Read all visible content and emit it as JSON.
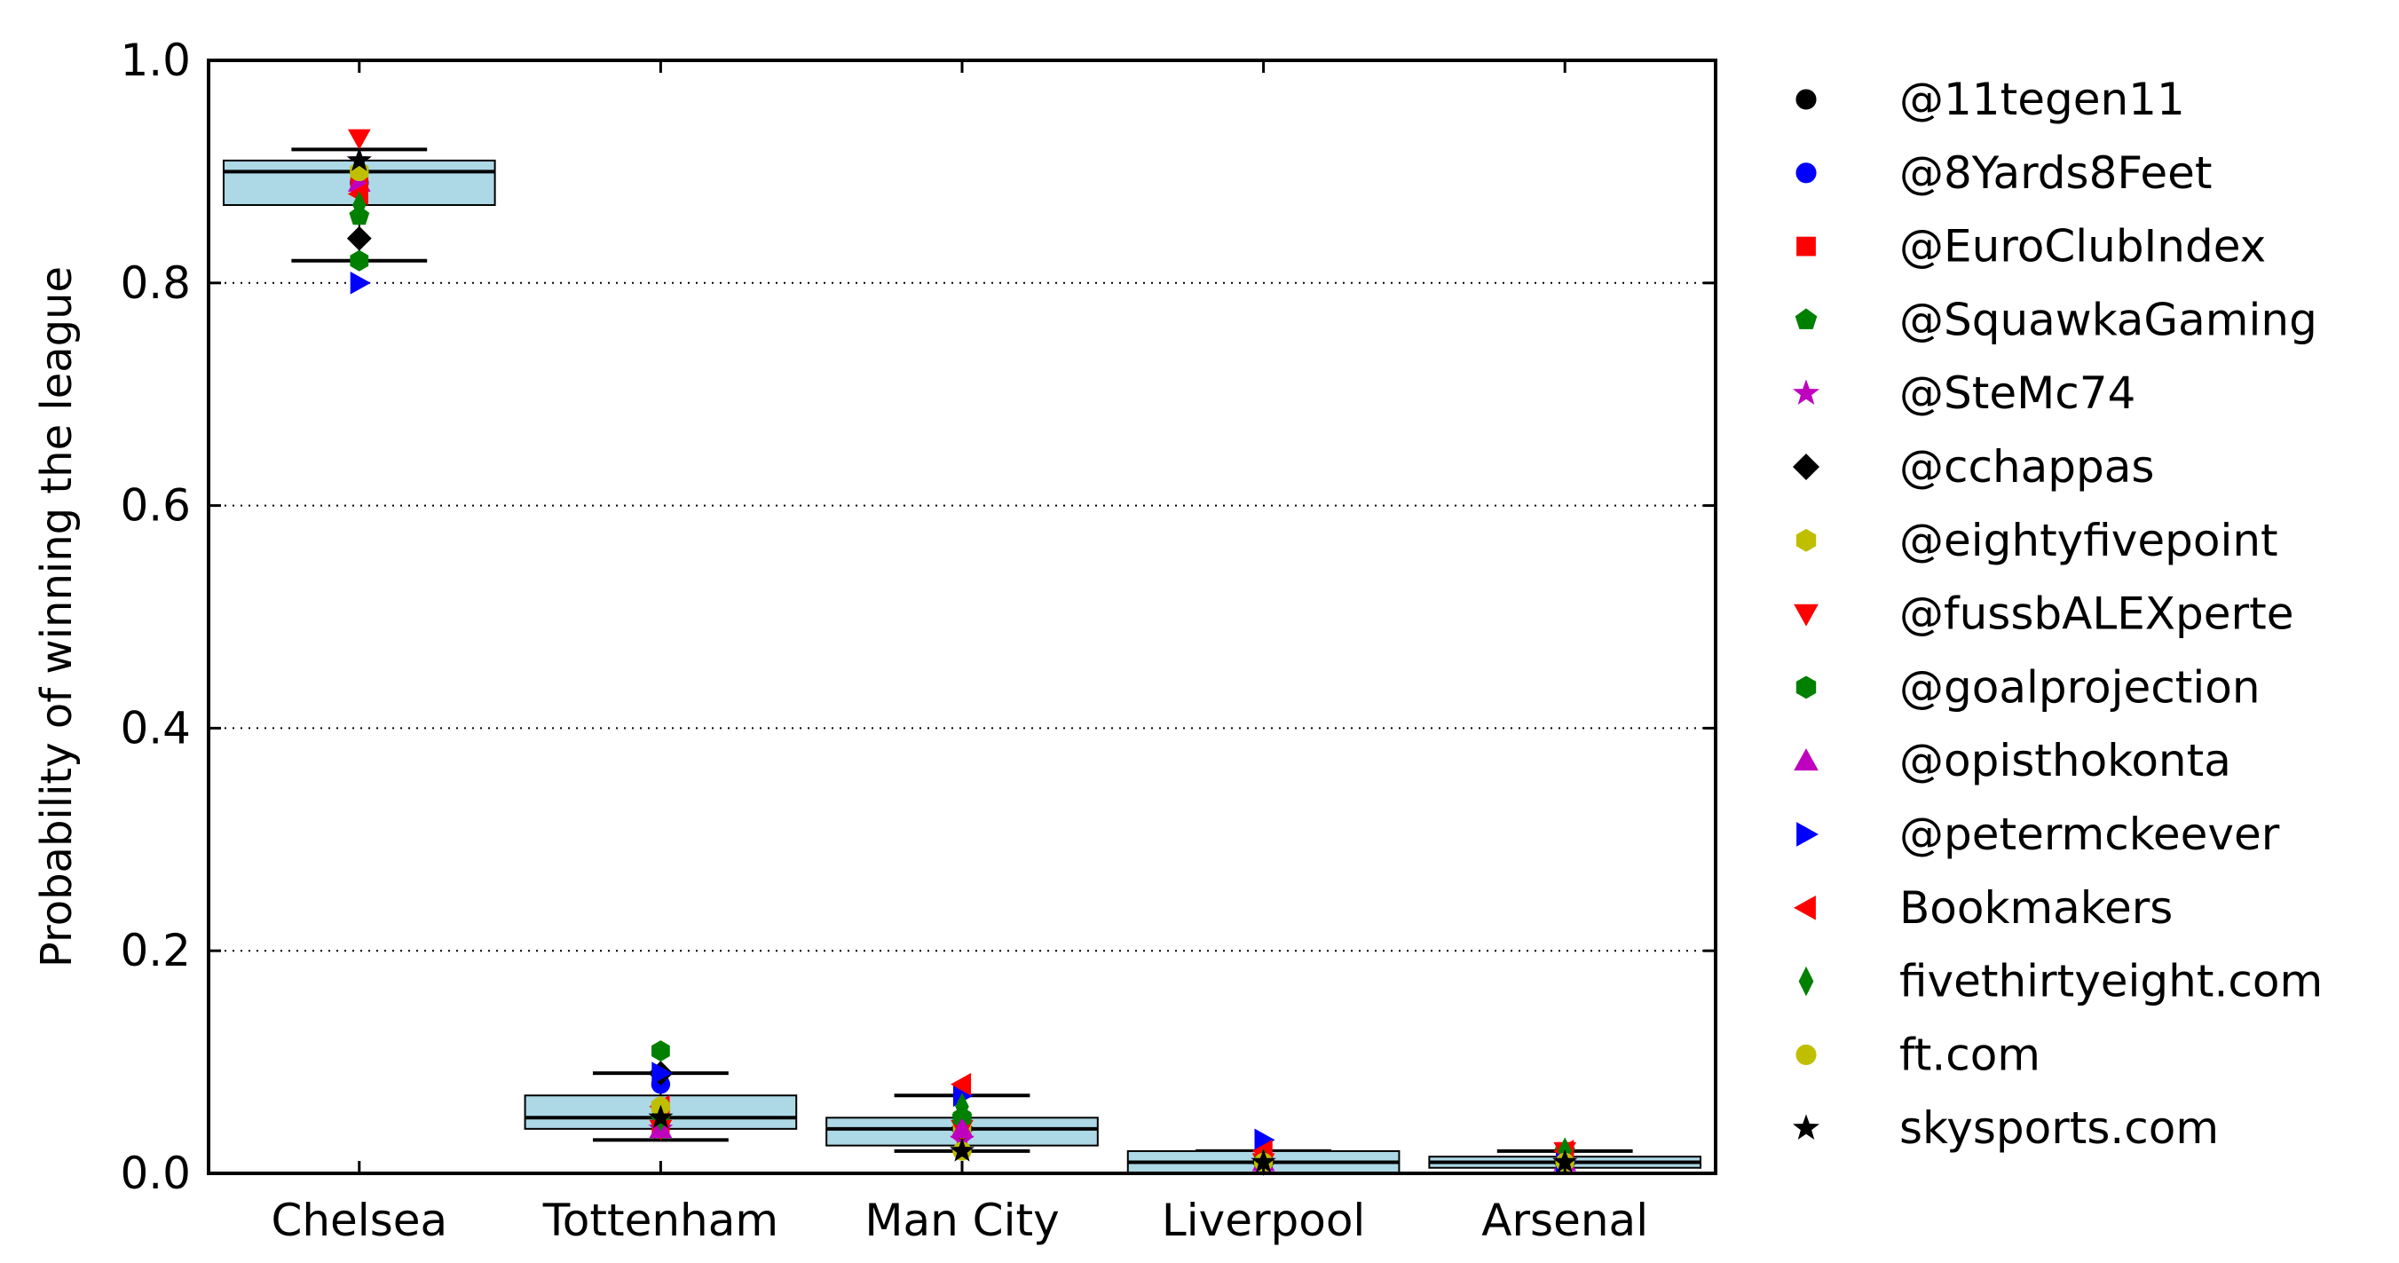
{
  "chart_data": {
    "type": "box",
    "title": "",
    "xlabel": "",
    "ylabel": "Probability of winning the league",
    "ylim": [
      0.0,
      1.0
    ],
    "yticks": [
      "0.0",
      "0.2",
      "0.4",
      "0.6",
      "0.8",
      "1.0"
    ],
    "ytick_values": [
      0.0,
      0.2,
      0.4,
      0.6,
      0.8,
      1.0
    ],
    "grid": "horizontal dotted",
    "legend_placement": "outside right",
    "categories": [
      "Chelsea",
      "Tottenham",
      "Man City",
      "Liverpool",
      "Arsenal"
    ],
    "boxes": [
      {
        "category": "Chelsea",
        "q1": 0.87,
        "median": 0.9,
        "q3": 0.91,
        "whisker_low": 0.82,
        "whisker_high": 0.92
      },
      {
        "category": "Tottenham",
        "q1": 0.04,
        "median": 0.05,
        "q3": 0.07,
        "whisker_low": 0.03,
        "whisker_high": 0.09
      },
      {
        "category": "Man City",
        "q1": 0.025,
        "median": 0.04,
        "q3": 0.05,
        "whisker_low": 0.02,
        "whisker_high": 0.07
      },
      {
        "category": "Liverpool",
        "q1": 0.0,
        "median": 0.01,
        "q3": 0.02,
        "whisker_low": 0.0,
        "whisker_high": 0.02
      },
      {
        "category": "Arsenal",
        "q1": 0.005,
        "median": 0.01,
        "q3": 0.015,
        "whisker_low": 0.0,
        "whisker_high": 0.02
      }
    ],
    "box_color": "#add8e6",
    "series": [
      {
        "name": "@11tegen11",
        "marker": "circle",
        "color": "#000000",
        "values": [
          0.9,
          0.06,
          0.04,
          0.01,
          0.01
        ]
      },
      {
        "name": "@8Yards8Feet",
        "marker": "circle",
        "color": "#0000ff",
        "values": [
          0.89,
          0.08,
          0.05,
          0.01,
          0.01
        ]
      },
      {
        "name": "@EuroClubIndex",
        "marker": "square",
        "color": "#ff0000",
        "values": [
          0.89,
          0.04,
          0.04,
          0.01,
          0.02
        ]
      },
      {
        "name": "@SquawkaGaming",
        "marker": "pentagon",
        "color": "#008000",
        "values": [
          0.86,
          0.05,
          0.05,
          0.01,
          0.02
        ]
      },
      {
        "name": "@SteMc74",
        "marker": "star",
        "color": "#bf00bf",
        "values": [
          0.91,
          0.04,
          0.03,
          0.01,
          0.01
        ]
      },
      {
        "name": "@cchappas",
        "marker": "diamond",
        "color": "#000000",
        "values": [
          0.84,
          0.09,
          0.04,
          0.01,
          0.01
        ]
      },
      {
        "name": "@eightyfivepoint",
        "marker": "hexagon",
        "color": "#bfbf00",
        "values": [
          0.9,
          0.06,
          0.04,
          0.01,
          0.01
        ]
      },
      {
        "name": "@fussbALEXperte",
        "marker": "triangle-down",
        "color": "#ff0000",
        "values": [
          0.93,
          0.04,
          0.04,
          0.01,
          0.02
        ]
      },
      {
        "name": "@goalprojection",
        "marker": "hexagon",
        "color": "#008000",
        "values": [
          0.82,
          0.11,
          0.05,
          0.01,
          0.01
        ]
      },
      {
        "name": "@opisthokonta",
        "marker": "triangle-up",
        "color": "#bf00bf",
        "values": [
          0.89,
          0.04,
          0.04,
          0.01,
          0.01
        ]
      },
      {
        "name": "@petermckeever",
        "marker": "triangle-right",
        "color": "#0000ff",
        "values": [
          0.8,
          0.09,
          0.07,
          0.03,
          0.01
        ]
      },
      {
        "name": "Bookmakers",
        "marker": "triangle-left",
        "color": "#ff0000",
        "values": [
          0.88,
          0.06,
          0.08,
          0.02,
          0.02
        ]
      },
      {
        "name": "fivethirtyeight.com",
        "marker": "thin-diamond",
        "color": "#008000",
        "values": [
          0.87,
          0.05,
          0.06,
          0.01,
          0.02
        ]
      },
      {
        "name": "ft.com",
        "marker": "circle",
        "color": "#bfbf00",
        "values": [
          0.9,
          0.06,
          0.02,
          0.01,
          0.01
        ]
      },
      {
        "name": "skysports.com",
        "marker": "star",
        "color": "#000000",
        "values": [
          0.91,
          0.05,
          0.02,
          0.01,
          0.01
        ]
      }
    ]
  }
}
